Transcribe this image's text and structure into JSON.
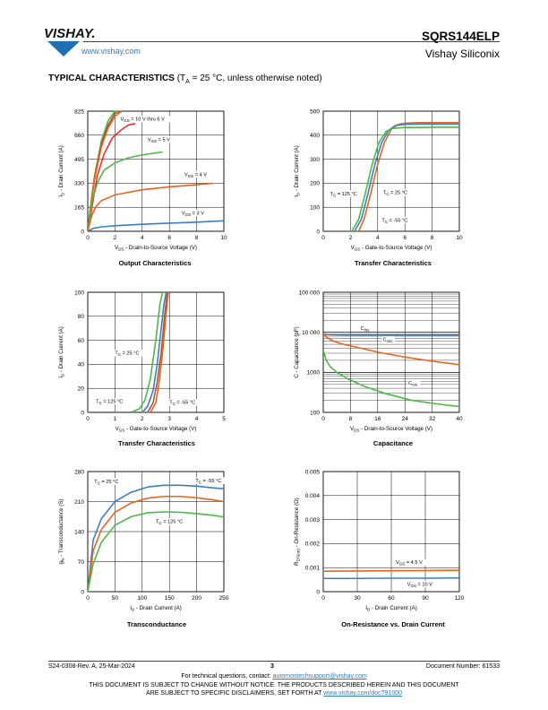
{
  "header": {
    "brand": "VISHAY.",
    "url": "www.vishay.com",
    "part_number": "SQRS144ELP",
    "company": "Vishay Siliconix"
  },
  "section": {
    "title": "TYPICAL CHARACTERISTICS",
    "conditions_pre": "(T",
    "conditions_sub": "A",
    "conditions_post": " = 25 °C, unless otherwise noted)"
  },
  "colors": {
    "blue": "#3a7ec4",
    "orange": "#e8631c",
    "green": "#4cb847",
    "brown": "#a5553a",
    "red": "#e5322d"
  },
  "chart_data": [
    {
      "id": "c1",
      "type": "line",
      "title": "Output Characteristics",
      "xlabel_parts": [
        "V",
        "DS",
        " - Drain-to-Source Voltage (V)"
      ],
      "ylabel_parts": [
        "I",
        "D",
        " - Drain Current (A)"
      ],
      "xlim": [
        0,
        10
      ],
      "ylim": [
        0,
        825
      ],
      "xticks": [
        0,
        2,
        4,
        6,
        8,
        10
      ],
      "yticks": [
        0,
        165,
        330,
        495,
        660,
        825
      ],
      "series": [
        {
          "color": "#4cb847",
          "x": [
            0,
            0.2,
            0.5,
            1,
            1.5,
            2,
            2.3
          ],
          "y": [
            0,
            165,
            380,
            620,
            760,
            825,
            825
          ]
        },
        {
          "color": "#a5553a",
          "x": [
            0,
            0.2,
            0.5,
            1,
            1.5,
            2,
            2.4
          ],
          "y": [
            0,
            160,
            370,
            600,
            730,
            810,
            825
          ]
        },
        {
          "color": "#e8631c",
          "x": [
            0,
            0.2,
            0.5,
            1,
            1.5,
            2,
            2.5
          ],
          "y": [
            0,
            155,
            355,
            580,
            710,
            790,
            825
          ]
        },
        {
          "color": "#e5322d",
          "x": [
            0,
            0.3,
            0.7,
            1.2,
            1.8,
            2.5,
            3.0,
            3.5
          ],
          "y": [
            0,
            160,
            380,
            530,
            640,
            700,
            730,
            740
          ]
        },
        {
          "color": "#4cb847",
          "x": [
            0,
            0.3,
            0.7,
            1.2,
            2,
            3,
            4,
            5.5
          ],
          "y": [
            0,
            200,
            330,
            420,
            470,
            505,
            525,
            545
          ]
        },
        {
          "color": "#e8631c",
          "x": [
            0,
            0.3,
            0.6,
            1,
            2,
            4,
            6,
            8,
            9.2
          ],
          "y": [
            0,
            110,
            170,
            210,
            250,
            285,
            305,
            320,
            330
          ]
        },
        {
          "color": "#3a7ec4",
          "x": [
            0,
            0.4,
            1,
            2,
            4,
            6,
            8,
            10
          ],
          "y": [
            0,
            20,
            30,
            38,
            48,
            56,
            63,
            72
          ]
        }
      ],
      "annotations": [
        {
          "pre": "V",
          "sub": "GS",
          "post": " = 10 V thru 6 V",
          "x": 2.4,
          "y": 760
        },
        {
          "pre": "V",
          "sub": "GS",
          "post": " = 5 V",
          "x": 4.4,
          "y": 620
        },
        {
          "pre": "V",
          "sub": "GS",
          "post": " = 4 V",
          "x": 7.1,
          "y": 380
        },
        {
          "pre": "V",
          "sub": "GS",
          "post": " = 3 V",
          "x": 6.9,
          "y": 115
        }
      ]
    },
    {
      "id": "c2",
      "type": "line",
      "title": "Transfer Characteristics",
      "xlabel_parts": [
        "V",
        "GS",
        " - Gate-to-Source Voltage (V)"
      ],
      "ylabel_parts": [
        "I",
        "D",
        " - Drain Current (A)"
      ],
      "xlim": [
        0,
        10
      ],
      "ylim": [
        0,
        500
      ],
      "xticks": [
        0,
        2,
        4,
        6,
        8,
        10
      ],
      "yticks": [
        0,
        100,
        200,
        300,
        400,
        500
      ],
      "series": [
        {
          "color": "#e8631c",
          "x": [
            0,
            2.6,
            3,
            3.5,
            4,
            4.5,
            5,
            5.5,
            6,
            7,
            8,
            10
          ],
          "y": [
            0,
            0,
            50,
            160,
            280,
            370,
            425,
            445,
            450,
            452,
            452,
            452
          ]
        },
        {
          "color": "#3a7ec4",
          "x": [
            0,
            2.3,
            2.8,
            3.3,
            3.8,
            4.3,
            4.8,
            5.3,
            6,
            7,
            8,
            10
          ],
          "y": [
            0,
            0,
            50,
            160,
            280,
            370,
            420,
            440,
            445,
            446,
            446,
            446
          ]
        },
        {
          "color": "#4cb847",
          "x": [
            0,
            2.1,
            2.6,
            3.1,
            3.6,
            4.1,
            4.6,
            5.1,
            6,
            7,
            8,
            10
          ],
          "y": [
            0,
            0,
            50,
            160,
            280,
            370,
            415,
            428,
            432,
            432,
            433,
            433
          ]
        }
      ],
      "annotations": [
        {
          "pre": "T",
          "sub": "C",
          "post": " = 125 °C",
          "x": 0.5,
          "y": 150
        },
        {
          "pre": "T",
          "sub": "C",
          "post": " = 25 °C",
          "x": 4.4,
          "y": 155
        },
        {
          "pre": "T",
          "sub": "C",
          "post": " = -55 °C",
          "x": 4.3,
          "y": 40
        }
      ]
    },
    {
      "id": "c3",
      "type": "line",
      "title": "Transfer Characteristics",
      "xlabel_parts": [
        "V",
        "GS",
        " - Gate-to-Source Voltage (V)"
      ],
      "ylabel_parts": [
        "I",
        "D",
        " - Drain Current (A)"
      ],
      "xlim": [
        0,
        5
      ],
      "ylim": [
        0,
        100
      ],
      "xticks": [
        0,
        1,
        2,
        3,
        4,
        5
      ],
      "yticks": [
        0,
        20,
        40,
        60,
        80,
        100
      ],
      "series": [
        {
          "color": "#4cb847",
          "x": [
            0,
            1.6,
            1.9,
            2.1,
            2.3,
            2.5,
            2.65,
            2.75
          ],
          "y": [
            0,
            0,
            3,
            10,
            28,
            60,
            90,
            100
          ]
        },
        {
          "color": "#3a7ec4",
          "x": [
            0,
            2.0,
            2.2,
            2.4,
            2.55,
            2.7,
            2.8,
            2.88
          ],
          "y": [
            0,
            0,
            5,
            18,
            40,
            70,
            90,
            100
          ]
        },
        {
          "color": "#a5553a",
          "x": [
            0,
            2.2,
            2.4,
            2.55,
            2.7,
            2.8,
            2.88,
            2.93
          ],
          "y": [
            0,
            0,
            8,
            25,
            50,
            75,
            92,
            100
          ]
        },
        {
          "color": "#e8631c",
          "x": [
            0,
            2.3,
            2.5,
            2.62,
            2.75,
            2.85,
            2.92,
            2.96
          ],
          "y": [
            0,
            0,
            8,
            25,
            50,
            75,
            92,
            100
          ]
        }
      ],
      "annotations": [
        {
          "pre": "T",
          "sub": "C",
          "post": " = 25 °C",
          "x": 1.0,
          "y": 48
        },
        {
          "pre": "T",
          "sub": "C",
          "post": " = 125 °C",
          "x": 0.3,
          "y": 8
        },
        {
          "pre": "T",
          "sub": "C",
          "post": " = -55 °C",
          "x": 3.0,
          "y": 7
        }
      ]
    },
    {
      "id": "c4",
      "type": "line",
      "title": "Capacitance",
      "log_y": true,
      "xlabel_parts": [
        "V",
        "DS",
        " - Drain-to-Source Voltage (V)"
      ],
      "ylabel_parts": [
        "C - Capacitance (pF)",
        "",
        ""
      ],
      "xlim": [
        0,
        40
      ],
      "ylim": [
        100,
        100000
      ],
      "xticks": [
        0,
        8,
        16,
        24,
        32,
        40
      ],
      "yticks": [
        100,
        1000,
        10000,
        100000
      ],
      "ytick_labels": [
        "100",
        "1000",
        "10 000",
        "100 000"
      ],
      "series": [
        {
          "color": "#3a7ec4",
          "x": [
            0,
            2,
            5,
            10,
            20,
            30,
            40
          ],
          "y": [
            9000,
            8700,
            8600,
            8550,
            8500,
            8500,
            8500
          ]
        },
        {
          "color": "#e8631c",
          "x": [
            0,
            1,
            3,
            6,
            10,
            16,
            24,
            32,
            40
          ],
          "y": [
            9500,
            7500,
            6000,
            5000,
            4200,
            3200,
            2400,
            1900,
            1550
          ]
        },
        {
          "color": "#4cb847",
          "x": [
            0,
            1,
            2,
            4,
            7,
            12,
            18,
            26,
            34,
            40
          ],
          "y": [
            3500,
            1900,
            1400,
            1000,
            700,
            450,
            300,
            200,
            160,
            140
          ]
        }
      ],
      "annotations": [
        {
          "pre": "C",
          "sub": "iss",
          "post": "",
          "x": 11,
          "y": 11500
        },
        {
          "pre": "C",
          "sub": "oss",
          "post": "",
          "x": 17.5,
          "y": 6000
        },
        {
          "pre": "C",
          "sub": "rss",
          "post": "",
          "x": 25,
          "y": 500
        }
      ]
    },
    {
      "id": "c5",
      "type": "line",
      "title": "Transconductance",
      "xlabel_parts": [
        "I",
        "D",
        " - Drain Current (A)"
      ],
      "ylabel_parts": [
        "g",
        "fs",
        " - Transconductance (S)"
      ],
      "xlim": [
        0,
        250
      ],
      "ylim": [
        0,
        280
      ],
      "xticks": [
        0,
        50,
        100,
        150,
        200,
        250
      ],
      "yticks": [
        0,
        70,
        140,
        210,
        280
      ],
      "series": [
        {
          "color": "#3a7ec4",
          "x": [
            0,
            10,
            25,
            50,
            80,
            110,
            140,
            170,
            200,
            230,
            250
          ],
          "y": [
            0,
            120,
            170,
            210,
            232,
            244,
            248,
            248,
            246,
            242,
            240
          ]
        },
        {
          "color": "#e8631c",
          "x": [
            0,
            10,
            25,
            50,
            80,
            110,
            140,
            170,
            200,
            230,
            250
          ],
          "y": [
            0,
            95,
            145,
            185,
            207,
            218,
            222,
            222,
            219,
            214,
            210
          ]
        },
        {
          "color": "#4cb847",
          "x": [
            0,
            10,
            25,
            50,
            80,
            110,
            140,
            170,
            200,
            230,
            250
          ],
          "y": [
            0,
            65,
            115,
            155,
            175,
            184,
            186,
            185,
            182,
            178,
            174
          ]
        }
      ],
      "annotations": [
        {
          "pre": "T",
          "sub": "C",
          "post": " = 25 °C",
          "x": 12,
          "y": 253
        },
        {
          "pre": "T",
          "sub": "C",
          "post": " = -55 °C",
          "x": 198,
          "y": 255
        },
        {
          "pre": "T",
          "sub": "C",
          "post": " = 125 °C",
          "x": 125,
          "y": 160
        }
      ]
    },
    {
      "id": "c6",
      "type": "line",
      "title": "On-Resistance vs. Drain Current",
      "xlabel_parts": [
        "I",
        "D",
        " - Drain Current (A)"
      ],
      "ylabel_parts": [
        "R",
        "DS(on)",
        " - On-Resistance (Ω)"
      ],
      "xlim": [
        0,
        120
      ],
      "ylim": [
        0,
        0.005
      ],
      "xticks": [
        0,
        30,
        60,
        90,
        120
      ],
      "yticks": [
        0,
        0.001,
        0.002,
        0.003,
        0.004,
        0.005
      ],
      "series": [
        {
          "color": "#e8631c",
          "x": [
            0,
            30,
            60,
            90,
            120
          ],
          "y": [
            0.00085,
            0.00086,
            0.00087,
            0.00088,
            0.00089
          ]
        },
        {
          "color": "#3a7ec4",
          "x": [
            0,
            30,
            60,
            90,
            120
          ],
          "y": [
            0.00055,
            0.00055,
            0.00056,
            0.00056,
            0.00057
          ]
        }
      ],
      "annotations": [
        {
          "pre": "V",
          "sub": "GS",
          "post": " = 4.5 V",
          "x": 64,
          "y": 0.00115
        },
        {
          "pre": "V",
          "sub": "GS",
          "post": " = 10 V",
          "x": 74,
          "y": 0.00025
        }
      ]
    }
  ],
  "footer": {
    "doc_rev": "S24-0308-Rev. A, 25-Mar-2024",
    "page": "3",
    "doc_number": "Document Number: 61533",
    "contact_pre": "For technical questions, contact: ",
    "contact_link": "automostechsupport@vishay.com",
    "disclaimer1": "THIS DOCUMENT IS SUBJECT TO CHANGE WITHOUT NOTICE. THE PRODUCTS DESCRIBED HEREIN AND THIS DOCUMENT",
    "disclaimer2_pre": "ARE SUBJECT TO SPECIFIC DISCLAIMERS, SET FORTH AT ",
    "disclaimer2_link": "www.vishay.com/doc?91000"
  }
}
